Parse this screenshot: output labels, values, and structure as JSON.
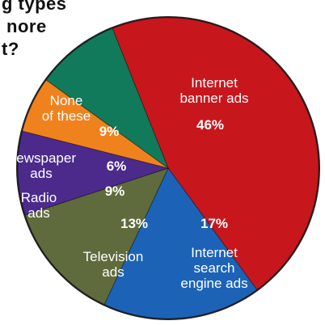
{
  "title_lines": [
    "g types",
    "nore",
    "t?"
  ],
  "chart_data": {
    "type": "pie",
    "title": "",
    "slices": [
      {
        "name": "Internet banner ads",
        "label_lines": [
          "Internet",
          "banner ads"
        ],
        "value": 46,
        "value_label": "46%",
        "color": "#c8161d"
      },
      {
        "name": "Internet search engine ads",
        "label_lines": [
          "Internet",
          "search",
          "engine ads"
        ],
        "value": 17,
        "value_label": "17%",
        "color": "#1c63b8"
      },
      {
        "name": "Television ads",
        "label_lines": [
          "Television",
          "ads"
        ],
        "value": 13,
        "value_label": "13%",
        "color": "#5f6b3c"
      },
      {
        "name": "Radio ads",
        "label_lines": [
          "Radio",
          "ads"
        ],
        "value": 9,
        "value_label": "9%",
        "color": "#4b2a8c"
      },
      {
        "name": "Newspaper ads",
        "label_lines": [
          "Newspaper",
          "ads"
        ],
        "value": 6,
        "value_label": "6%",
        "color": "#f0821e"
      },
      {
        "name": "None of these",
        "label_lines": [
          "None",
          "of these"
        ],
        "value": 9,
        "value_label": "9%",
        "color": "#117a5a"
      }
    ]
  }
}
